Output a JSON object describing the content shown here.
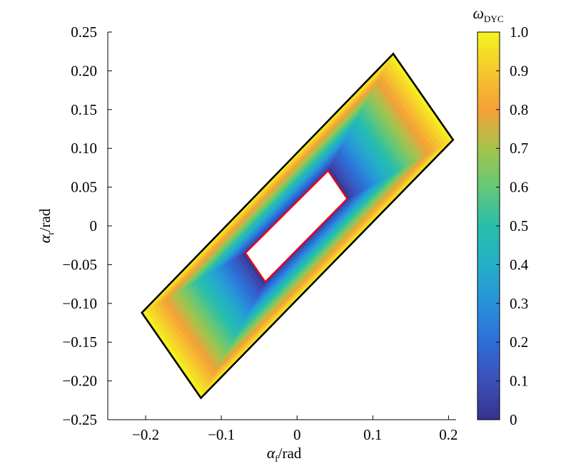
{
  "chart_data": {
    "type": "heatmap",
    "title": "",
    "xlabel": {
      "symbol": "α",
      "subscript": "f",
      "unit": "/rad"
    },
    "ylabel": {
      "symbol": "α",
      "subscript": "r",
      "unit": "/rad"
    },
    "xlim": [
      -0.25,
      0.21
    ],
    "ylim": [
      -0.25,
      0.25
    ],
    "xticks": [
      -0.2,
      -0.1,
      0,
      0.1,
      0.2
    ],
    "xtick_labels": [
      "−0.2",
      "−0.1",
      "0",
      "0.1",
      "0.2"
    ],
    "yticks": [
      -0.25,
      -0.2,
      -0.15,
      -0.1,
      -0.05,
      0,
      0.05,
      0.1,
      0.15,
      0.2,
      0.25
    ],
    "ytick_labels": [
      "−0.25",
      "−0.20",
      "−0.15",
      "−0.10",
      "−0.05",
      "0",
      "0.05",
      "0.10",
      "0.15",
      "0.20",
      "0.25"
    ],
    "grid": false,
    "colorbar": {
      "label": {
        "symbol": "ω",
        "subscript": "DYC"
      },
      "range": [
        0,
        1.0
      ],
      "ticks": [
        0,
        0.1,
        0.2,
        0.3,
        0.4,
        0.5,
        0.6,
        0.7,
        0.8,
        0.9,
        1.0
      ],
      "tick_labels": [
        "0",
        "0.1",
        "0.2",
        "0.3",
        "0.4",
        "0.5",
        "0.6",
        "0.7",
        "0.8",
        "0.9",
        "1.0"
      ],
      "colormap": "parula"
    },
    "outer_region": {
      "color": "#000000",
      "vertices": [
        [
          -0.205,
          -0.112
        ],
        [
          -0.127,
          -0.222
        ],
        [
          0.206,
          0.111
        ],
        [
          0.127,
          0.222
        ]
      ]
    },
    "inner_region": {
      "color": "#ff0000",
      "fill": "#ffffff",
      "vertices": [
        [
          -0.068,
          -0.035
        ],
        [
          -0.042,
          -0.072
        ],
        [
          0.066,
          0.035
        ],
        [
          0.041,
          0.071
        ]
      ]
    },
    "field": {
      "description_value_at_inner_boundary": 0,
      "description_value_at_outer_boundary": 1.0
    }
  }
}
